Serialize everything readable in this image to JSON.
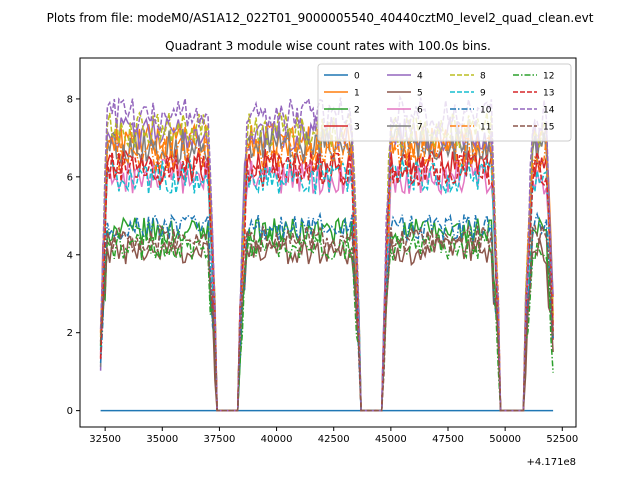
{
  "figure": {
    "suptitle": "Plots from file: modeM0/AS1A12_022T01_9000005540_40440cztM0_level2_quad_clean.evt",
    "title": "Quadrant 3 module wise count rates with 100.0s bins.",
    "x_offset_label": "+4.171e8"
  },
  "chart_data": {
    "type": "line",
    "title": "Quadrant 3 module wise count rates with 100.0s bins.",
    "xlabel": "",
    "ylabel": "",
    "x_offset": 417100000,
    "xlim": [
      31400,
      53100
    ],
    "ylim": [
      -0.42,
      9.05
    ],
    "xticks": [
      32500,
      35000,
      37500,
      40000,
      42500,
      45000,
      47500,
      50000,
      52500
    ],
    "yticks": [
      0,
      2,
      4,
      6,
      8
    ],
    "grid": false,
    "legend": {
      "placement": "top-right",
      "columns": 4
    },
    "gaps": [
      [
        37300,
        38400
      ],
      [
        43600,
        44700
      ],
      [
        49700,
        50900
      ]
    ],
    "segments": [
      [
        32300,
        37300
      ],
      [
        38400,
        43600
      ],
      [
        44700,
        49700
      ],
      [
        50900,
        52100
      ]
    ],
    "series": [
      {
        "name": "0",
        "color": "#1f77b4",
        "dash": "solid",
        "level": 0.0
      },
      {
        "name": "1",
        "color": "#ff7f0e",
        "dash": "solid",
        "level": 6.9
      },
      {
        "name": "2",
        "color": "#2ca02c",
        "dash": "solid",
        "level": 4.6
      },
      {
        "name": "3",
        "color": "#d62728",
        "dash": "solid",
        "level": 6.3
      },
      {
        "name": "4",
        "color": "#9467bd",
        "dash": "solid",
        "level": 7.1
      },
      {
        "name": "5",
        "color": "#8c564b",
        "dash": "solid",
        "level": 4.1
      },
      {
        "name": "6",
        "color": "#e377c2",
        "dash": "solid",
        "level": 6.0
      },
      {
        "name": "7",
        "color": "#7f7f7f",
        "dash": "solid",
        "level": 6.8
      },
      {
        "name": "8",
        "color": "#bcbd22",
        "dash": "dashed",
        "level": 7.2
      },
      {
        "name": "9",
        "color": "#17becf",
        "dash": "dashed",
        "level": 6.0
      },
      {
        "name": "10",
        "color": "#1f77b4",
        "dash": "dashdot",
        "level": 4.7
      },
      {
        "name": "11",
        "color": "#ff7f0e",
        "dash": "dashdot",
        "level": 6.6
      },
      {
        "name": "12",
        "color": "#2ca02c",
        "dash": "dashdot",
        "level": 4.2
      },
      {
        "name": "13",
        "color": "#d62728",
        "dash": "dashed",
        "level": 6.2
      },
      {
        "name": "14",
        "color": "#9467bd",
        "dash": "dashed",
        "level": 7.6
      },
      {
        "name": "15",
        "color": "#8c564b",
        "dash": "dashed",
        "level": 4.4
      }
    ]
  }
}
